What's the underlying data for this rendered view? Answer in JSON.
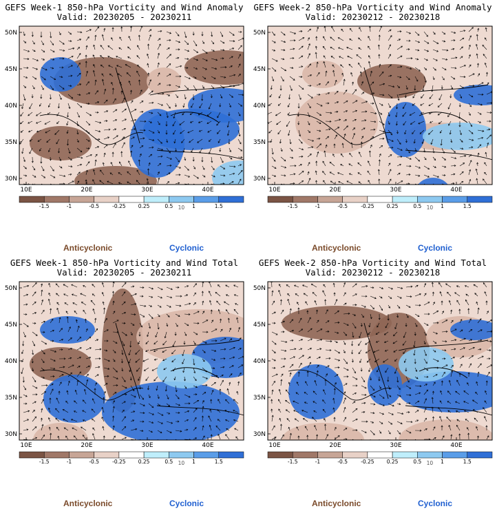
{
  "panels": [
    {
      "title": "GEFS Week-1 850-hPa Vorticity and Wind Anomaly",
      "valid": "Valid: 20230205 - 20230211"
    },
    {
      "title": "GEFS Week-2 850-hPa Vorticity and Wind Anomaly",
      "valid": "Valid: 20230212 - 20230218"
    },
    {
      "title": "GEFS Week-1 850-hPa Vorticity and Wind Total",
      "valid": "Valid: 20230205 - 20230211"
    },
    {
      "title": "GEFS Week-2 850-hPa Vorticity and Wind Total",
      "valid": "Valid: 20230212 - 20230218"
    }
  ],
  "lat_labels": [
    "50N",
    "45N",
    "40N",
    "35N",
    "30N"
  ],
  "lon_labels": [
    "10E",
    "20E",
    "30E",
    "40E"
  ],
  "colorbar": {
    "labels": [
      "-1.5",
      "-1",
      "-0.5",
      "-0.25",
      "0.25",
      "0.5",
      "1",
      "1.5"
    ],
    "multiplier": "10",
    "colors": [
      "#7b5444",
      "#a07868",
      "#c7a596",
      "#e8d1c7",
      "#ffffff",
      "#bfeefb",
      "#8dc9f0",
      "#5a9de8",
      "#2f6fd6"
    ]
  },
  "legend": {
    "anticyclonic": "Anticyclonic",
    "cyclonic": "Cyclonic",
    "anticyclonic_color": "#7a4a2a",
    "cyclonic_color": "#1f5fd0"
  },
  "colors": {
    "brown": "#8f6655",
    "light_brown": "#d9b7a8",
    "blue": "#2f6fd6",
    "light_blue": "#8dc9f0"
  }
}
